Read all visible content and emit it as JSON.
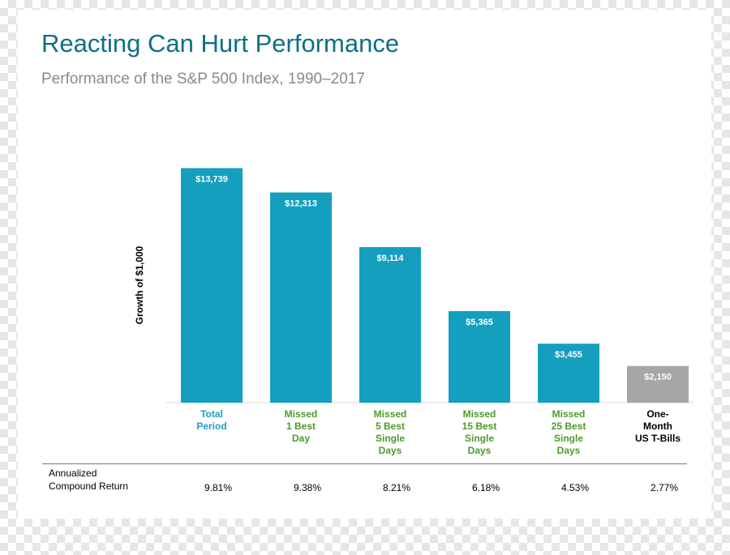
{
  "title": "Reacting Can Hurt Performance",
  "subtitle": "Performance of the S&P 500 Index, 1990–2017",
  "colors": {
    "title": "#0d6f84",
    "bar": "#159fbf",
    "bar_tbills": "#a6a6a6",
    "label_total": "#1a9fc4",
    "label_missed": "#4c9a2a",
    "label_tbills": "#000000"
  },
  "chart_data": {
    "type": "bar",
    "title": "Reacting Can Hurt Performance",
    "subtitle": "Performance of the S&P 500 Index, 1990–2017",
    "xlabel": "",
    "ylabel": "Growth of $1,000",
    "ylim": [
      0,
      14000
    ],
    "grid": false,
    "categories": [
      "Total\nPeriod",
      "Missed\n1 Best\nDay",
      "Missed\n5 Best\nSingle\nDays",
      "Missed\n15 Best\nSingle\nDays",
      "Missed\n25 Best\nSingle\nDays",
      "One-\nMonth\nUS T-Bills"
    ],
    "values": [
      13739,
      12313,
      9114,
      5365,
      3455,
      2150
    ],
    "value_labels": [
      "$13,739",
      "$12,313",
      "$9,114",
      "$5,365",
      "$3,455",
      "$2,150"
    ],
    "category_styles": [
      "total",
      "missed",
      "missed",
      "missed",
      "missed",
      "tbills"
    ],
    "annualized_label": "Annualized\nCompound Return",
    "annualized_returns": [
      "9.81%",
      "9.38%",
      "8.21%",
      "6.18%",
      "4.53%",
      "2.77%"
    ]
  }
}
